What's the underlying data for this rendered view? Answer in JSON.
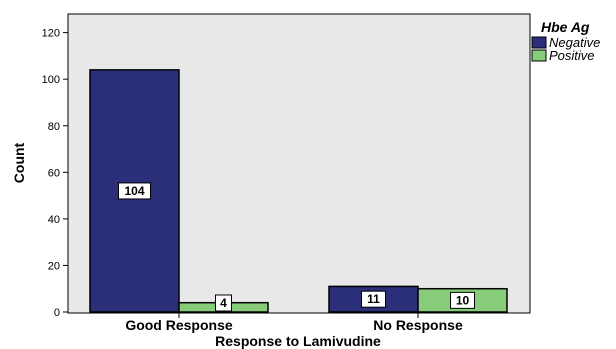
{
  "chart_data": {
    "type": "bar",
    "title": "",
    "xlabel": "Response to Lamivudine",
    "ylabel": "Count",
    "categories": [
      "Good Response",
      "No Response"
    ],
    "series": [
      {
        "name": "Negative",
        "values": [
          104,
          11
        ],
        "color": "#2b2f7a",
        "labels": [
          "104",
          "11"
        ]
      },
      {
        "name": "Positive",
        "values": [
          4,
          10
        ],
        "color": "#86cc7a",
        "labels": [
          "4",
          "10"
        ]
      }
    ],
    "ylim": [
      0,
      128
    ],
    "yticks": [
      0,
      20,
      40,
      60,
      80,
      100,
      120
    ],
    "ytick_labels": [
      "0",
      "20",
      "40",
      "60",
      "80",
      "100",
      "120"
    ],
    "legend": {
      "title": "Hbe Ag",
      "placement": "top-right"
    },
    "grid": false,
    "plot_background": "#e8e8e8"
  }
}
